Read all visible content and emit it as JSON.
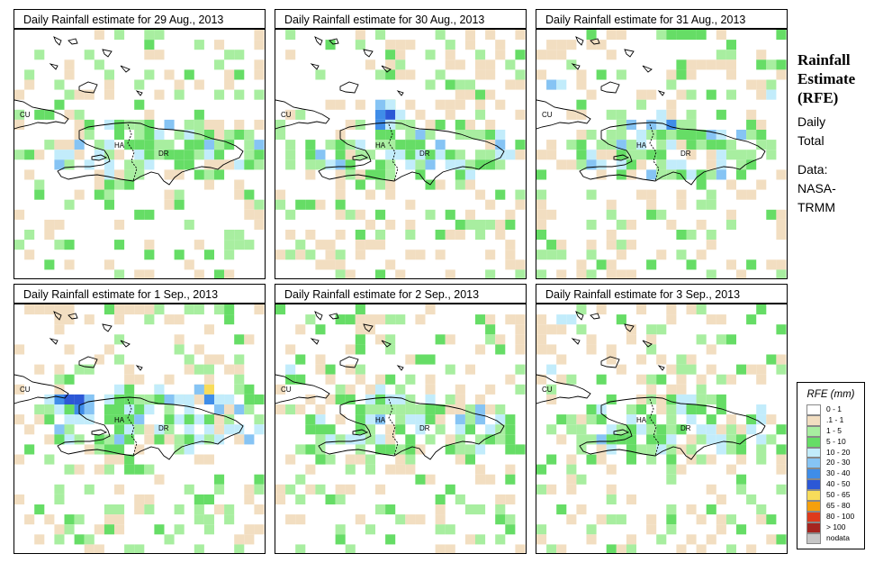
{
  "panels": [
    {
      "title": "Daily Rainfall estimate for  29 Aug., 2013",
      "seed": 11,
      "hot": []
    },
    {
      "title": "Daily Rainfall estimate for  30 Aug., 2013",
      "seed": 23,
      "hot": [
        [
          10,
          8,
          6
        ],
        [
          11,
          8,
          7
        ],
        [
          10,
          9,
          6
        ],
        [
          11,
          9,
          4
        ],
        [
          12,
          8,
          4
        ],
        [
          10,
          7,
          5
        ],
        [
          11,
          7,
          4
        ]
      ]
    },
    {
      "title": "Daily Rainfall estimate for  31 Aug., 2013",
      "seed": 37,
      "hot": [
        [
          12,
          8,
          4
        ],
        [
          13,
          9,
          6
        ],
        [
          12,
          9,
          4
        ],
        [
          1,
          5,
          5
        ],
        [
          2,
          5,
          4
        ],
        [
          23,
          6,
          4
        ]
      ]
    },
    {
      "title": "Daily Rainfall estimate for  1 Sep., 2013",
      "seed": 41,
      "hot": [
        [
          4,
          9,
          6
        ],
        [
          5,
          9,
          7
        ],
        [
          6,
          9,
          7
        ],
        [
          7,
          9,
          5
        ],
        [
          4,
          10,
          4
        ],
        [
          6,
          10,
          6
        ],
        [
          3,
          9,
          4
        ],
        [
          9,
          9,
          4
        ],
        [
          10,
          8,
          4
        ],
        [
          14,
          8,
          4
        ],
        [
          15,
          9,
          5
        ],
        [
          16,
          9,
          4
        ],
        [
          18,
          8,
          5
        ],
        [
          19,
          8,
          8
        ],
        [
          19,
          9,
          6
        ],
        [
          20,
          9,
          4
        ],
        [
          17,
          9,
          4
        ],
        [
          21,
          9,
          4
        ]
      ]
    },
    {
      "title": "Daily Rainfall estimate for  2 Sep., 2013",
      "seed": 53,
      "hot": [
        [
          1,
          6,
          4
        ],
        [
          10,
          8,
          4
        ],
        [
          11,
          9,
          4
        ],
        [
          12,
          9,
          4
        ]
      ]
    },
    {
      "title": "Daily Rainfall estimate for  3 Sep., 2013",
      "seed": 67,
      "hot": [
        [
          2,
          1,
          4
        ],
        [
          3,
          1,
          4
        ],
        [
          1,
          6,
          4
        ],
        [
          14,
          9,
          4
        ],
        [
          15,
          11,
          4
        ],
        [
          10,
          12,
          4
        ]
      ]
    }
  ],
  "map_labels": {
    "cu": "CU",
    "ha": "HA",
    "dr": "DR"
  },
  "side": {
    "title_lines": [
      "Rainfall",
      "Estimate",
      "(RFE)"
    ],
    "subtitle_lines": [
      "Daily",
      "Total"
    ],
    "source_lines": [
      "Data:",
      "NASA-",
      "TRMM"
    ]
  },
  "legend": {
    "title": "RFE (mm)",
    "items": [
      {
        "label": "0 - 1",
        "color": "#ffffff"
      },
      {
        "label": ".1 - 1",
        "color": "#f2dec1"
      },
      {
        "label": "1 - 5",
        "color": "#a8eea0"
      },
      {
        "label": "5 - 10",
        "color": "#66dd66"
      },
      {
        "label": "10 - 20",
        "color": "#c2ecfb"
      },
      {
        "label": "20 - 30",
        "color": "#86c4f4"
      },
      {
        "label": "30 - 40",
        "color": "#3f8de8"
      },
      {
        "label": "40 - 50",
        "color": "#2c58d6"
      },
      {
        "label": "50 - 65",
        "color": "#f8dc5a"
      },
      {
        "label": "65 - 80",
        "color": "#f5a00c"
      },
      {
        "label": "80 - 100",
        "color": "#de3a1c"
      },
      {
        "label": "> 100",
        "color": "#a52520"
      },
      {
        "label": "nodata",
        "color": "#c6c6c6"
      }
    ]
  }
}
